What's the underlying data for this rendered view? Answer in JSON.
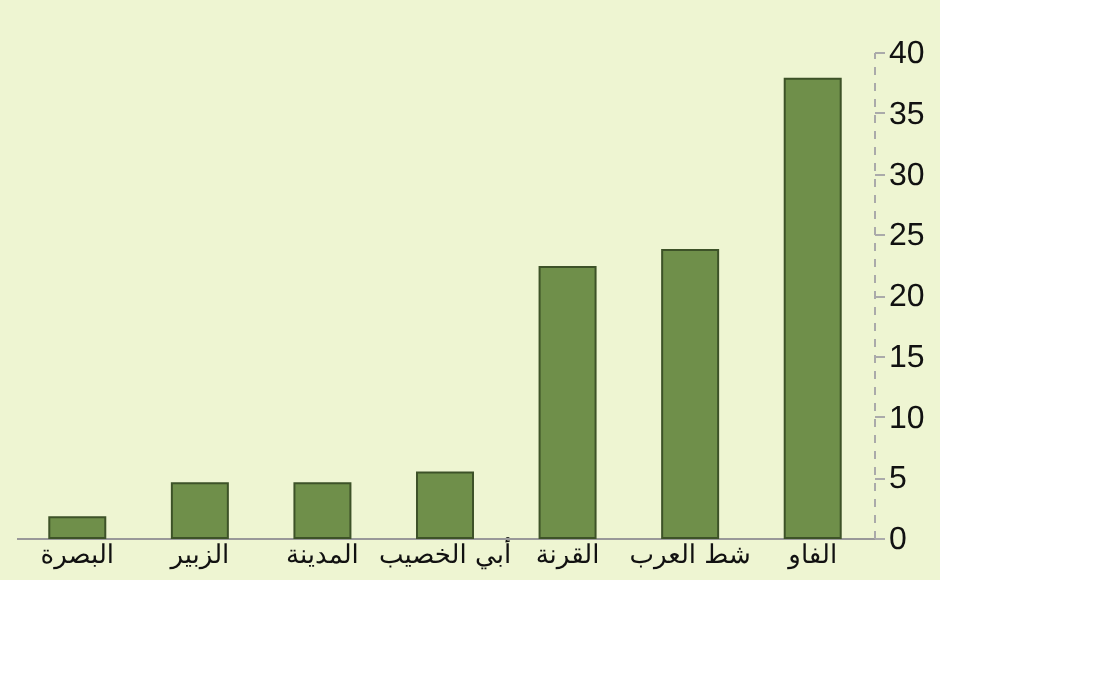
{
  "chart_data": {
    "type": "bar",
    "categories": [
      "البصرة",
      "الزبير",
      "المدينة",
      "أبي الخصيب",
      "القرنة",
      "شط العرب",
      "الفاو"
    ],
    "values": [
      1.7,
      4.5,
      4.5,
      5.4,
      22.3,
      23.7,
      37.8
    ],
    "color": "#6f8f4a",
    "ylim": [
      0,
      40
    ],
    "yticks": [
      0,
      5,
      10,
      15,
      20,
      25,
      30,
      35,
      40
    ],
    "grid": false
  }
}
